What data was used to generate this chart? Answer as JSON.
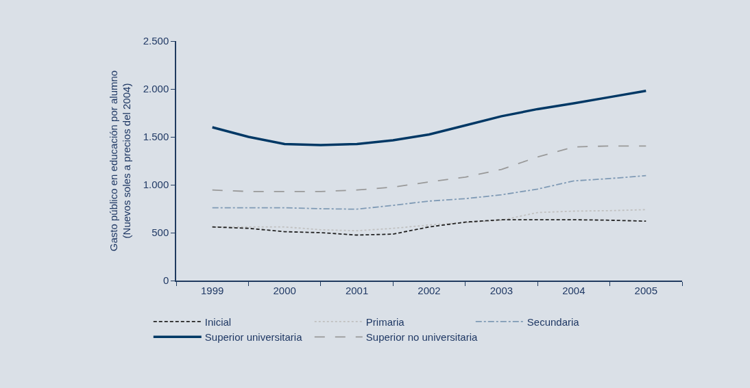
{
  "chart_data": {
    "type": "line",
    "ylabel": "Gasto público en educación por alumno\n(Nuevos soles a precios del 2004)",
    "x": [
      1999,
      1999.5,
      2000,
      2000.5,
      2001,
      2001.5,
      2002,
      2002.5,
      2003,
      2003.5,
      2004,
      2004.5,
      2005
    ],
    "xlim": [
      1998.5,
      2005.5
    ],
    "xticks": [
      1999,
      2000,
      2001,
      2002,
      2003,
      2004,
      2005,
      {
        "value": 1998.5,
        "label": null
      },
      {
        "value": 1999.5,
        "label": null
      },
      {
        "value": 2000.5,
        "label": null
      },
      {
        "value": 2001.5,
        "label": null
      },
      {
        "value": 2002.5,
        "label": null
      },
      {
        "value": 2003.5,
        "label": null
      },
      {
        "value": 2004.5,
        "label": null
      },
      {
        "value": 2005.5,
        "label": null
      }
    ],
    "ylim": [
      0,
      2500
    ],
    "yticks": [
      0,
      {
        "value": 500,
        "label": "500"
      },
      {
        "value": 1000,
        "label": "1.000"
      },
      {
        "value": 1500,
        "label": "1.500"
      },
      {
        "value": 2000,
        "label": "2.000"
      },
      {
        "value": 2500,
        "label": "2.500"
      }
    ],
    "grid": false,
    "legend": "bottom",
    "marker": "none",
    "series": [
      {
        "name": "Inicial",
        "color": "#222222",
        "line_style": "dashed",
        "values": [
          560,
          545,
          510,
          500,
          475,
          485,
          560,
          610,
          635,
          635,
          635,
          630,
          620
        ]
      },
      {
        "name": "Primaria",
        "color": "#c0c0c0",
        "line_style": "dotted",
        "values": [
          560,
          560,
          560,
          530,
          520,
          545,
          580,
          605,
          630,
          710,
          725,
          730,
          740
        ]
      },
      {
        "name": "Secundaria",
        "color": "#7f9ab5",
        "line_style": "dashdot",
        "values": [
          760,
          760,
          760,
          750,
          745,
          785,
          830,
          855,
          895,
          955,
          1040,
          1065,
          1095
        ]
      },
      {
        "name": "Superior universitaria",
        "color": "#003865",
        "line_style": "solid",
        "values": [
          1600,
          1500,
          1425,
          1415,
          1425,
          1465,
          1525,
          1620,
          1715,
          1790,
          1850,
          1915,
          1980
        ]
      },
      {
        "name": "Superior no universitaria",
        "color": "#999999",
        "line_style": "longdash",
        "values": [
          945,
          930,
          930,
          930,
          945,
          975,
          1030,
          1080,
          1160,
          1290,
          1395,
          1405,
          1405
        ]
      }
    ]
  }
}
